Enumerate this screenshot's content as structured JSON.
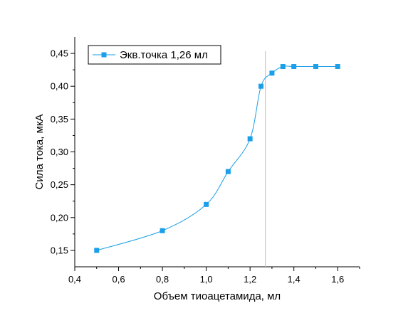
{
  "chart_data": {
    "type": "line",
    "title": "",
    "xlabel": "Объем тиоацетамида, мл",
    "ylabel": "Сила тока, мкА",
    "xlim": [
      0.4,
      1.7
    ],
    "ylim": [
      0.125,
      0.475
    ],
    "xticks": [
      0.4,
      0.6,
      0.8,
      1.0,
      1.2,
      1.4,
      1.6
    ],
    "xtick_labels": [
      "0,4",
      "0,6",
      "0,8",
      "1,0",
      "1,2",
      "1,4",
      "1,6"
    ],
    "yticks": [
      0.15,
      0.2,
      0.25,
      0.3,
      0.35,
      0.4,
      0.45
    ],
    "ytick_labels": [
      "0,15",
      "0,20",
      "0,25",
      "0,30",
      "0,35",
      "0,40",
      "0,45"
    ],
    "grid": false,
    "legend_position": "top-left",
    "series": [
      {
        "name": "Экв.точка 1,26 мл",
        "color": "#1a9fe8",
        "marker": "square",
        "smooth": true,
        "x": [
          0.5,
          0.8,
          1.0,
          1.1,
          1.2,
          1.25,
          1.3,
          1.35,
          1.4,
          1.5,
          1.6
        ],
        "y": [
          0.15,
          0.18,
          0.22,
          0.27,
          0.32,
          0.4,
          0.42,
          0.43,
          0.43,
          0.43,
          0.43
        ]
      }
    ],
    "reference_line": {
      "axis": "x",
      "value": 1.27,
      "color": "#f4a7a7"
    }
  }
}
